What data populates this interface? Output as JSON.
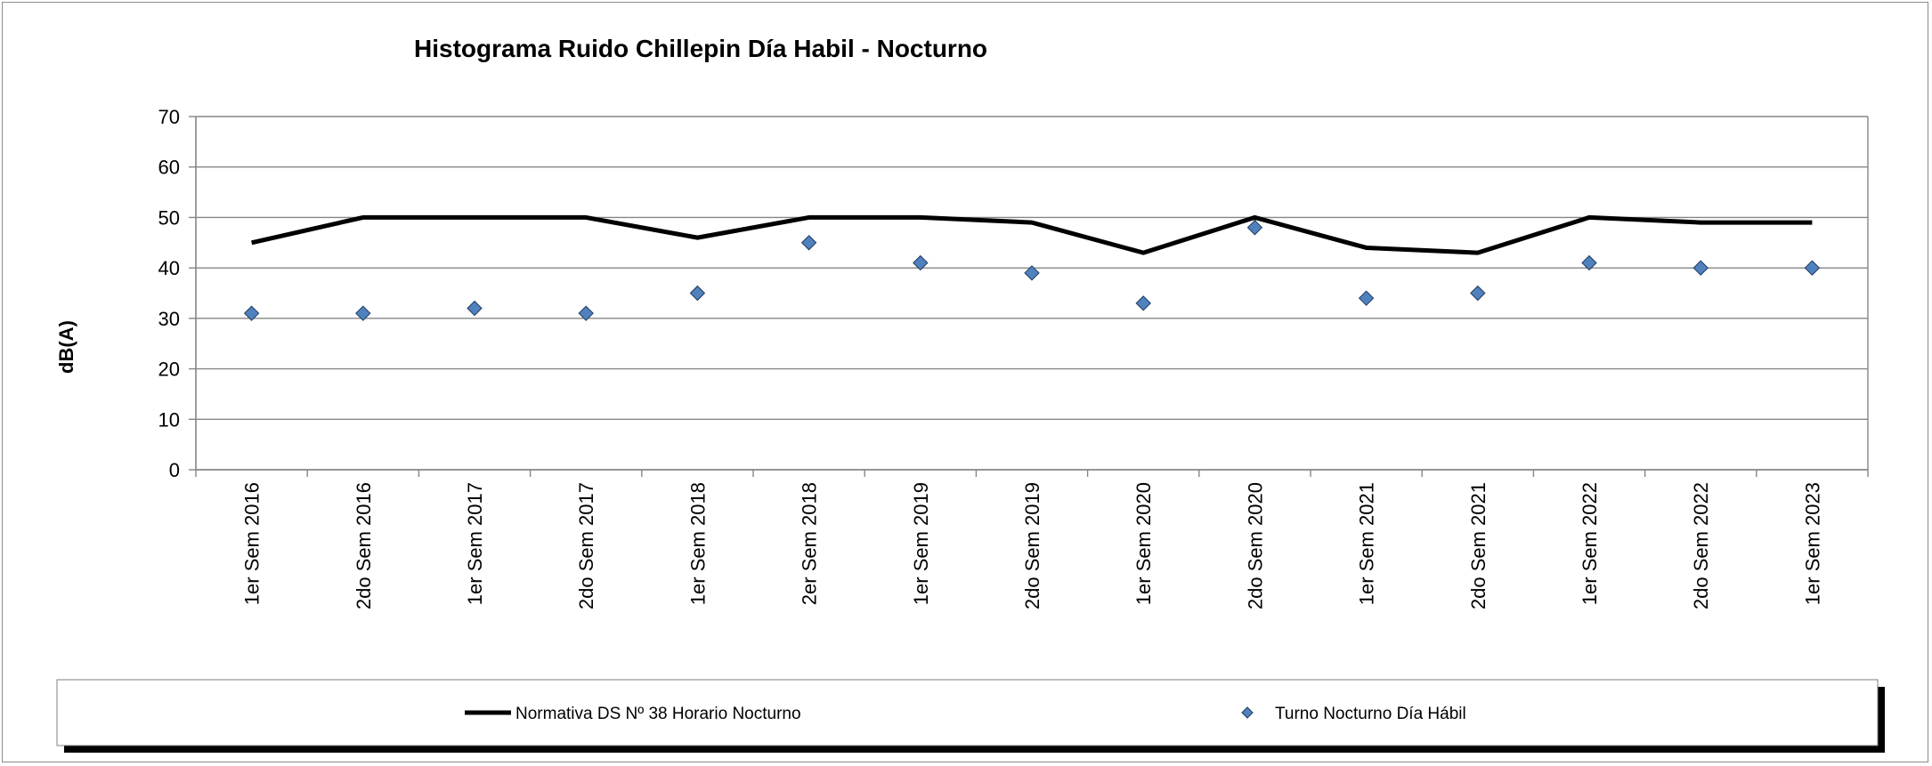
{
  "chart_data": {
    "type": "line",
    "title": "Histograma Ruido Chillepin Día Habil - Nocturno",
    "xlabel": "",
    "ylabel": "dB(A)",
    "ylim": [
      0,
      70
    ],
    "yticks": [
      0,
      10,
      20,
      30,
      40,
      50,
      60,
      70
    ],
    "grid": true,
    "legend_position": "bottom",
    "categories": [
      "1er Sem 2016",
      "2do Sem 2016",
      "1er Sem 2017",
      "2do Sem 2017",
      "1er Sem 2018",
      "2er Sem 2018",
      "1er Sem 2019",
      "2do Sem 2019",
      "1er Sem 2020",
      "2do Sem 2020",
      "1er Sem 2021",
      "2do Sem 2021",
      "1er Sem 2022",
      "2do Sem 2022",
      "1er Sem 2023"
    ],
    "series": [
      {
        "name": "Normativa DS Nº 38 Horario Nocturno",
        "kind": "line",
        "color": "#000000",
        "values": [
          45,
          50,
          50,
          50,
          46,
          50,
          50,
          49,
          43,
          50,
          44,
          43,
          50,
          49,
          49
        ]
      },
      {
        "name": "Turno Nocturno Día Hábil",
        "kind": "marker-diamond",
        "color": "#4f81bd",
        "values": [
          31,
          31,
          32,
          31,
          35,
          45,
          41,
          39,
          33,
          48,
          34,
          35,
          41,
          40,
          40
        ]
      }
    ]
  }
}
